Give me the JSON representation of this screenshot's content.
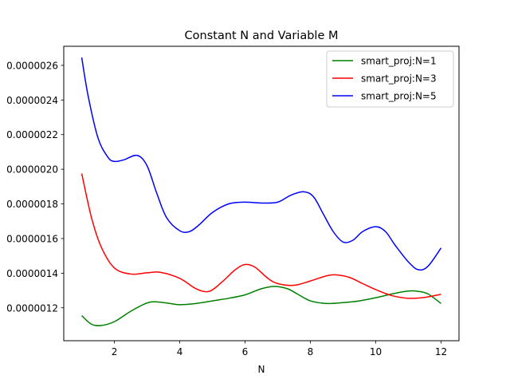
{
  "chart_data": {
    "type": "line",
    "title": "Constant N and Variable M",
    "xlabel": "N",
    "ylabel": "",
    "xlim": [
      0.45,
      12.55
    ],
    "ylim": [
      1.01e-06,
      2.71e-06
    ],
    "xticks": [
      2,
      4,
      6,
      8,
      10,
      12
    ],
    "xtick_labels": [
      "2",
      "4",
      "6",
      "8",
      "10",
      "12"
    ],
    "yticks": [
      1.2e-06,
      1.4e-06,
      1.6e-06,
      1.8e-06,
      2e-06,
      2.2e-06,
      2.4e-06,
      2.6e-06
    ],
    "ytick_labels": [
      "0.0000012",
      "0.0000014",
      "0.0000016",
      "0.0000018",
      "0.0000020",
      "0.0000022",
      "0.0000024",
      "0.0000026"
    ],
    "grid": false,
    "legend_position": "top-right",
    "series": [
      {
        "name": "smart_proj:N=1",
        "color": "#008000",
        "x": [
          1,
          1.3,
          1.6,
          2,
          2.5,
          3,
          3.3,
          3.7,
          4,
          4.5,
          5,
          5.5,
          6,
          6.5,
          6.9,
          7.3,
          7.6,
          8,
          8.5,
          9,
          9.5,
          10,
          10.5,
          11,
          11.3,
          11.6,
          12
        ],
        "y": [
          1.155e-06,
          1.105e-06,
          1.098e-06,
          1.12e-06,
          1.18e-06,
          1.228e-06,
          1.234e-06,
          1.225e-06,
          1.218e-06,
          1.225e-06,
          1.24e-06,
          1.255e-06,
          1.275e-06,
          1.31e-06,
          1.323e-06,
          1.31e-06,
          1.28e-06,
          1.24e-06,
          1.225e-06,
          1.23e-06,
          1.24e-06,
          1.258e-06,
          1.28e-06,
          1.297e-06,
          1.295e-06,
          1.28e-06,
          1.225e-06
        ]
      },
      {
        "name": "smart_proj:N=3",
        "color": "#ff0000",
        "x": [
          1,
          1.3,
          1.6,
          2,
          2.5,
          3,
          3.4,
          4,
          4.5,
          4.9,
          5.3,
          5.7,
          6,
          6.3,
          6.7,
          7,
          7.5,
          8,
          8.5,
          8.8,
          9.2,
          9.6,
          10,
          10.5,
          11,
          11.5,
          12
        ],
        "y": [
          1.975e-06,
          1.72e-06,
          1.55e-06,
          1.43e-06,
          1.395e-06,
          1.402e-06,
          1.405e-06,
          1.37e-06,
          1.31e-06,
          1.295e-06,
          1.35e-06,
          1.42e-06,
          1.45e-06,
          1.435e-06,
          1.37e-06,
          1.34e-06,
          1.33e-06,
          1.355e-06,
          1.385e-06,
          1.39e-06,
          1.375e-06,
          1.34e-06,
          1.305e-06,
          1.27e-06,
          1.255e-06,
          1.26e-06,
          1.278e-06
        ]
      },
      {
        "name": "smart_proj:N=5",
        "color": "#0000ff",
        "x": [
          1,
          1.2,
          1.5,
          1.8,
          2,
          2.3,
          2.7,
          3,
          3.3,
          3.6,
          4,
          4.3,
          4.6,
          5,
          5.5,
          6,
          6.5,
          7,
          7.4,
          7.8,
          8.1,
          8.4,
          8.7,
          9,
          9.3,
          9.6,
          10,
          10.3,
          10.6,
          11,
          11.3,
          11.6,
          12
        ],
        "y": [
          2.645e-06,
          2.42e-06,
          2.18e-06,
          2.07e-06,
          2.045e-06,
          2.055e-06,
          2.08e-06,
          2.02e-06,
          1.86e-06,
          1.72e-06,
          1.645e-06,
          1.64e-06,
          1.68e-06,
          1.75e-06,
          1.8e-06,
          1.81e-06,
          1.805e-06,
          1.81e-06,
          1.85e-06,
          1.87e-06,
          1.84e-06,
          1.74e-06,
          1.64e-06,
          1.58e-06,
          1.59e-06,
          1.64e-06,
          1.668e-06,
          1.64e-06,
          1.56e-06,
          1.465e-06,
          1.42e-06,
          1.44e-06,
          1.545e-06
        ]
      }
    ]
  }
}
